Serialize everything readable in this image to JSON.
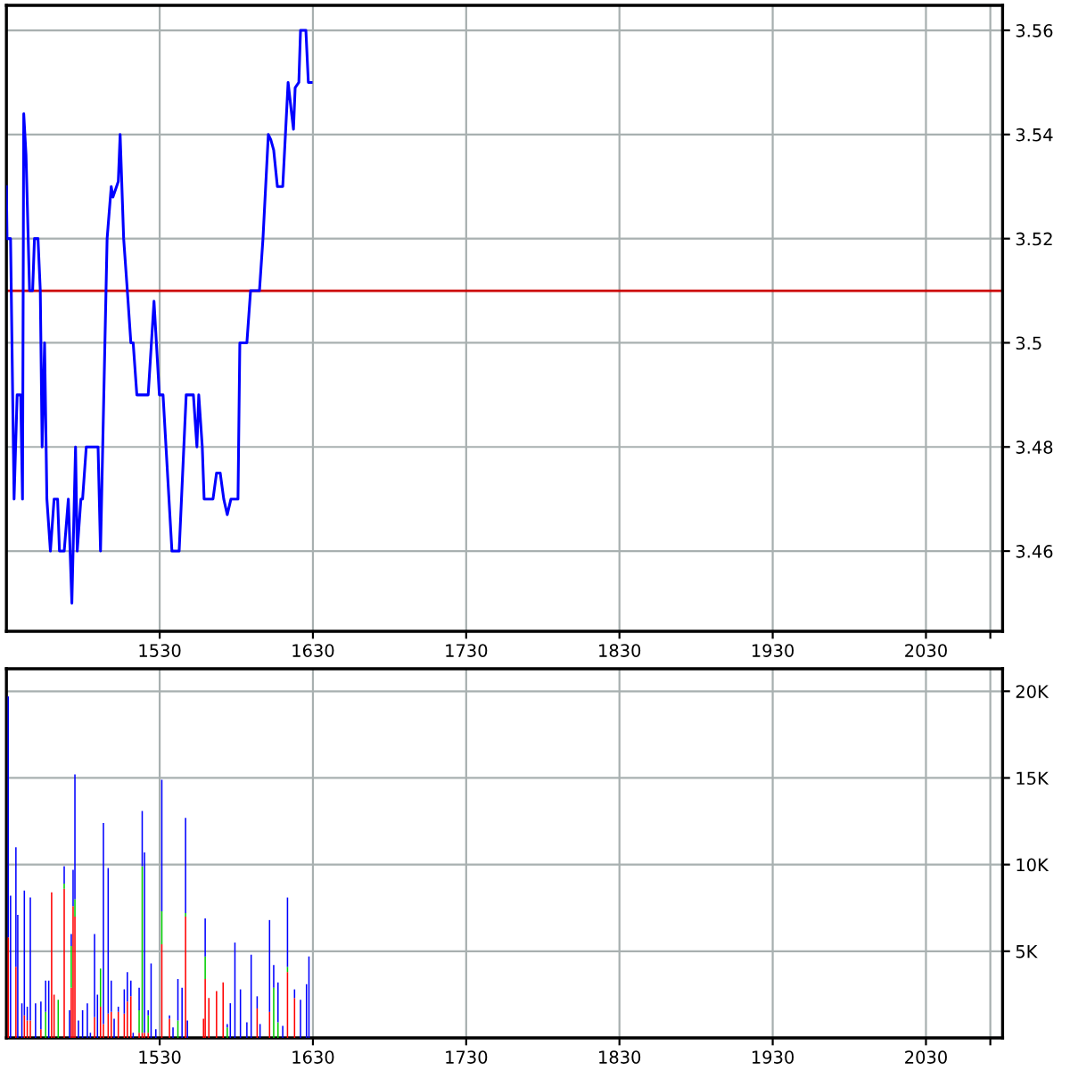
{
  "chart_data": [
    {
      "type": "line",
      "xlim": [
        1430,
        2080
      ],
      "ylim": [
        3.4446,
        3.5648
      ],
      "grid": true,
      "xticks": [
        1530,
        1630,
        1730,
        1830,
        1930,
        2030,
        {
          "value": 2072,
          "label": null
        }
      ],
      "yticks": [
        3.46,
        3.48,
        {
          "value": 3.5,
          "label": "3.5"
        },
        3.52,
        3.54,
        3.56
      ],
      "ref_lines": [
        {
          "axis": "y",
          "value": 3.51,
          "color": "#cc0000"
        }
      ],
      "x": [
        1430,
        1430.4,
        1432.7,
        1435,
        1437,
        1439.3,
        1440.5,
        1441.3,
        1442.8,
        1445.1,
        1447.1,
        1448.3,
        1450.6,
        1452.1,
        1453.3,
        1454.9,
        1456.4,
        1458.7,
        1461.1,
        1463.4,
        1464.6,
        1467.7,
        1470.4,
        1472.7,
        1475.1,
        1476.2,
        1478.6,
        1479.7,
        1482.1,
        1484.8,
        1487.9,
        1489.8,
        1491.4,
        1495.7,
        1498.4,
        1499.5,
        1503,
        1504.2,
        1506.5,
        1508.9,
        1511.2,
        1512.7,
        1515.1,
        1522.5,
        1526.3,
        1529.8,
        1532.2,
        1538,
        1542.7,
        1547.3,
        1552,
        1554.3,
        1555.5,
        1557.8,
        1559,
        1564.8,
        1567.1,
        1569.5,
        1571.8,
        1574.1,
        1576.5,
        1581.1,
        1582.3,
        1586.9,
        1589.3,
        1595.1,
        1597.4,
        1600.9,
        1602.5,
        1604.4,
        1606.8,
        1610.3,
        1613.8,
        1616.1,
        1617.3,
        1618.4,
        1620.8,
        1621.9,
        1625.4,
        1627,
        1628.9
      ],
      "series": [
        {
          "color": "#0000ff",
          "values": [
            3.53,
            3.52,
            3.52,
            3.47,
            3.49,
            3.49,
            3.47,
            3.544,
            3.536,
            3.51,
            3.51,
            3.52,
            3.52,
            3.51,
            3.48,
            3.5,
            3.47,
            3.46,
            3.47,
            3.47,
            3.46,
            3.46,
            3.47,
            3.45,
            3.48,
            3.46,
            3.47,
            3.47,
            3.48,
            3.48,
            3.48,
            3.48,
            3.46,
            3.52,
            3.53,
            3.528,
            3.531,
            3.54,
            3.52,
            3.51,
            3.5,
            3.5,
            3.49,
            3.49,
            3.508,
            3.49,
            3.49,
            3.46,
            3.46,
            3.49,
            3.49,
            3.48,
            3.49,
            3.48,
            3.47,
            3.47,
            3.475,
            3.475,
            3.47,
            3.467,
            3.47,
            3.47,
            3.5,
            3.5,
            3.51,
            3.51,
            3.52,
            3.54,
            3.539,
            3.537,
            3.53,
            3.53,
            3.55,
            3.544,
            3.541,
            3.549,
            3.55,
            3.56,
            3.56,
            3.55,
            3.55
          ]
        }
      ]
    },
    {
      "type": "bar",
      "stacked": true,
      "xlim": [
        1430,
        2080
      ],
      "ylim": [
        0,
        21300
      ],
      "grid": true,
      "xticks": [
        1530,
        1630,
        1730,
        1830,
        1930,
        2030,
        {
          "value": 2072,
          "label": null
        }
      ],
      "yticks": [
        {
          "value": 5000,
          "label": "5K"
        },
        {
          "value": 10000,
          "label": "10K"
        },
        {
          "value": 15000,
          "label": "15K"
        },
        {
          "value": 20000,
          "label": "20K"
        }
      ],
      "x": [
        1431.2,
        1432.7,
        1436.2,
        1437.4,
        1440.1,
        1441.7,
        1443.6,
        1445.6,
        1449,
        1452.5,
        1455.6,
        1457.6,
        1459.5,
        1461.1,
        1463.8,
        1467.7,
        1471.2,
        1472.3,
        1473.5,
        1474.7,
        1477,
        1479.7,
        1482.8,
        1484.8,
        1487.5,
        1489.4,
        1491.4,
        1493.3,
        1496.4,
        1498.4,
        1500.3,
        1503,
        1506.9,
        1508.9,
        1511.2,
        1512.7,
        1516.6,
        1518.6,
        1520.1,
        1522.5,
        1524.4,
        1527.5,
        1531.4,
        1536.4,
        1538.7,
        1541.9,
        1544.6,
        1546.9,
        1548.1,
        1558.6,
        1559.7,
        1562.1,
        1567.1,
        1571.4,
        1574.1,
        1576.1,
        1579.1,
        1582.7,
        1586.9,
        1589.7,
        1593.6,
        1595.5,
        1598.2,
        1601.7,
        1604.4,
        1607.2,
        1610.3,
        1613.4,
        1618,
        1621.9,
        1625.8,
        1627.4
      ],
      "series": [
        {
          "color": "#ff0000",
          "values": [
            5800,
            null,
            4100,
            null,
            null,
            1300,
            1000,
            1000,
            null,
            500,
            null,
            null,
            8400,
            2500,
            null,
            8600,
            null,
            2900,
            7600,
            7000,
            null,
            null,
            null,
            null,
            1200,
            null,
            1800,
            800,
            1400,
            1500,
            null,
            1500,
            1400,
            2100,
            2400,
            null,
            300,
            300,
            300,
            300,
            null,
            null,
            5400,
            1100,
            null,
            null,
            null,
            7000,
            null,
            1100,
            3400,
            2300,
            2700,
            3200,
            null,
            null,
            null,
            null,
            null,
            null,
            1700,
            null,
            null,
            1500,
            null,
            null,
            null,
            3800,
            2300,
            null,
            null,
            null
          ]
        },
        {
          "color": "#00cc00",
          "values": [
            null,
            null,
            null,
            null,
            null,
            null,
            null,
            null,
            null,
            null,
            1500,
            null,
            null,
            null,
            2200,
            300,
            null,
            2400,
            null,
            1000,
            null,
            null,
            null,
            null,
            null,
            null,
            2200,
            null,
            null,
            null,
            null,
            null,
            null,
            null,
            null,
            null,
            1300,
            9600,
            null,
            1000,
            null,
            null,
            1900,
            null,
            null,
            1000,
            null,
            200,
            null,
            null,
            1300,
            null,
            null,
            null,
            600,
            null,
            null,
            null,
            null,
            null,
            null,
            null,
            null,
            null,
            2900,
            900,
            null,
            300,
            null,
            null,
            null,
            null
          ]
        },
        {
          "color": "#0000ff",
          "values": [
            13900,
            8200,
            6900,
            7100,
            2000,
            7200,
            800,
            7100,
            2000,
            1600,
            1800,
            3300,
            null,
            null,
            null,
            1000,
            1600,
            700,
            2100,
            7200,
            1000,
            1600,
            2000,
            300,
            4800,
            2500,
            null,
            11600,
            8400,
            1800,
            1100,
            300,
            1400,
            1700,
            900,
            300,
            1300,
            3200,
            10400,
            300,
            4300,
            500,
            7600,
            200,
            600,
            2400,
            2900,
            5500,
            1000,
            null,
            2200,
            null,
            null,
            null,
            200,
            2000,
            5500,
            2800,
            900,
            4800,
            700,
            800,
            null,
            5300,
            1300,
            2300,
            700,
            4000,
            500,
            2200,
            3100,
            4700
          ]
        }
      ]
    }
  ]
}
